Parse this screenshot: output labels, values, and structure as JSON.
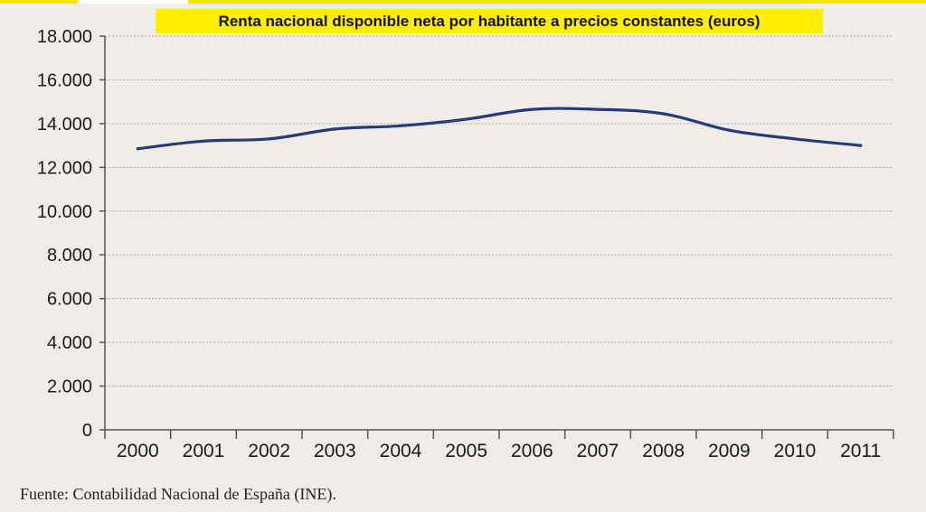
{
  "chart_data": {
    "type": "line",
    "title": "Renta nacional disponible neta por habitante a precios constantes (euros)",
    "xlabel": "",
    "ylabel": "",
    "categories": [
      "2000",
      "2001",
      "2002",
      "2003",
      "2004",
      "2005",
      "2006",
      "2007",
      "2008",
      "2009",
      "2010",
      "2011"
    ],
    "series": [
      {
        "name": "Renta nacional disponible neta por habitante",
        "values": [
          12850,
          13200,
          13300,
          13750,
          13900,
          14200,
          14650,
          14650,
          14450,
          13700,
          13300,
          13000
        ]
      }
    ],
    "ylim": [
      0,
      18000
    ],
    "yticks": [
      0,
      2000,
      4000,
      6000,
      8000,
      10000,
      12000,
      14000,
      16000,
      18000
    ],
    "ytick_labels": [
      "0",
      "2.000",
      "4.000",
      "6.000",
      "8.000",
      "10.000",
      "12.000",
      "14.000",
      "16.000",
      "18.000"
    ],
    "grid": true,
    "colors": {
      "line": "#27397a",
      "grid": "#a9a9a9",
      "title_bg": "#ffee00"
    }
  },
  "source": "Fuente: Contabilidad Nacional de España (INE)."
}
